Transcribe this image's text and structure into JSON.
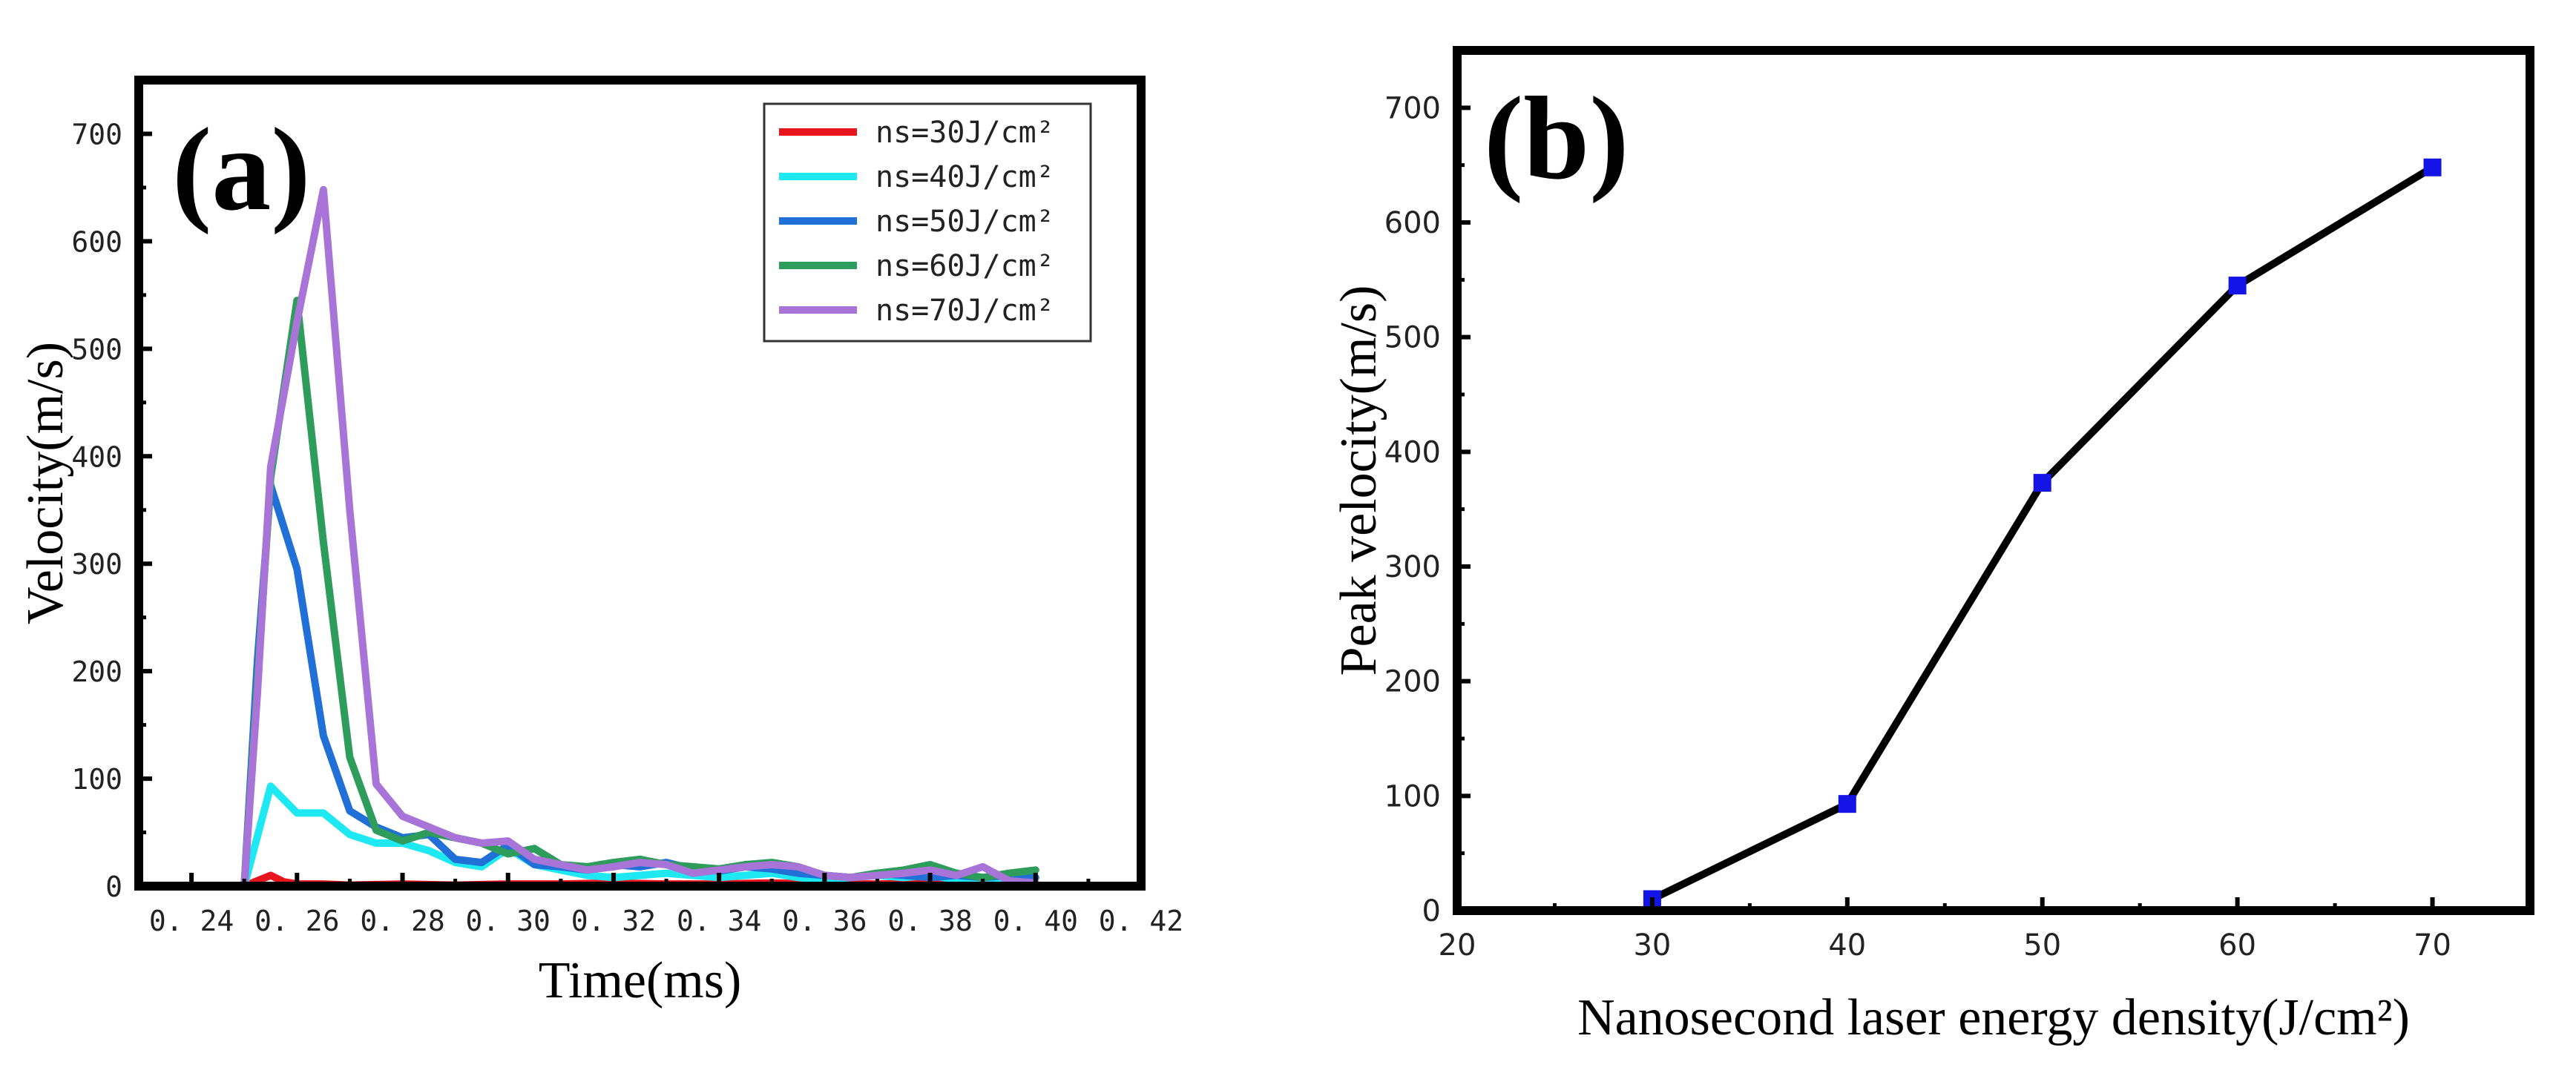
{
  "chart_data": [
    {
      "type": "line",
      "panel_label": "(a)",
      "xlabel": "Time(ms)",
      "ylabel": "Velocity(m/s)",
      "xlim": [
        0.23,
        0.42
      ],
      "ylim": [
        0,
        750
      ],
      "xticks": [
        0.24,
        0.26,
        0.28,
        0.3,
        0.32,
        0.34,
        0.36,
        0.38,
        0.4,
        0.42
      ],
      "xtick_labels": [
        "0. 24",
        "0. 26",
        "0. 28",
        "0. 30",
        "0. 32",
        "0. 34",
        "0. 36",
        "0. 38",
        "0. 40",
        "0. 42"
      ],
      "yticks": [
        0,
        100,
        200,
        300,
        400,
        500,
        600,
        700
      ],
      "legend_position": "top-right",
      "series": [
        {
          "name": "ns=30J/cm²",
          "color": "#e8141e",
          "x": [
            0.25,
            0.2525,
            0.255,
            0.2575,
            0.26,
            0.265,
            0.27,
            0.28,
            0.29,
            0.3,
            0.31,
            0.32,
            0.33,
            0.34,
            0.35,
            0.36,
            0.37,
            0.38,
            0.39,
            0.4
          ],
          "y": [
            0,
            5,
            10,
            4,
            2,
            2,
            1,
            2,
            1,
            2,
            2,
            3,
            2,
            2,
            3,
            2,
            2,
            3,
            2,
            2
          ]
        },
        {
          "name": "ns=40J/cm²",
          "color": "#1ee8f2",
          "x": [
            0.25,
            0.255,
            0.26,
            0.265,
            0.27,
            0.275,
            0.28,
            0.285,
            0.29,
            0.295,
            0.3,
            0.305,
            0.31,
            0.315,
            0.32,
            0.325,
            0.33,
            0.335,
            0.34,
            0.345,
            0.35,
            0.355,
            0.36,
            0.365,
            0.37,
            0.375,
            0.38,
            0.385,
            0.39,
            0.395,
            0.4
          ],
          "y": [
            0,
            93,
            68,
            68,
            48,
            40,
            40,
            33,
            22,
            18,
            35,
            20,
            15,
            10,
            8,
            10,
            12,
            10,
            8,
            10,
            12,
            8,
            6,
            8,
            10,
            8,
            10,
            6,
            8,
            6,
            8
          ]
        },
        {
          "name": "ns=50J/cm²",
          "color": "#2070d8",
          "x": [
            0.25,
            0.2525,
            0.255,
            0.26,
            0.265,
            0.27,
            0.275,
            0.28,
            0.285,
            0.29,
            0.295,
            0.3,
            0.305,
            0.31,
            0.315,
            0.32,
            0.325,
            0.33,
            0.335,
            0.34,
            0.345,
            0.35,
            0.355,
            0.36,
            0.365,
            0.37,
            0.375,
            0.38,
            0.385,
            0.39,
            0.395,
            0.4
          ],
          "y": [
            0,
            210,
            373,
            295,
            140,
            70,
            55,
            45,
            48,
            25,
            22,
            38,
            20,
            18,
            15,
            20,
            18,
            22,
            16,
            14,
            18,
            16,
            12,
            10,
            8,
            12,
            10,
            8,
            10,
            8,
            10,
            8
          ]
        },
        {
          "name": "ns=60J/cm²",
          "color": "#2e9c5a",
          "x": [
            0.25,
            0.255,
            0.26,
            0.265,
            0.27,
            0.275,
            0.28,
            0.285,
            0.29,
            0.295,
            0.3,
            0.305,
            0.31,
            0.315,
            0.32,
            0.325,
            0.33,
            0.335,
            0.34,
            0.345,
            0.35,
            0.355,
            0.36,
            0.365,
            0.37,
            0.375,
            0.38,
            0.385,
            0.39,
            0.395,
            0.4
          ],
          "y": [
            0,
            380,
            545,
            320,
            120,
            52,
            42,
            50,
            45,
            40,
            30,
            35,
            20,
            18,
            22,
            25,
            20,
            18,
            16,
            20,
            22,
            18,
            10,
            8,
            12,
            15,
            20,
            12,
            8,
            12,
            15
          ]
        },
        {
          "name": "ns=70J/cm²",
          "color": "#a874d8",
          "x": [
            0.25,
            0.2525,
            0.255,
            0.26,
            0.265,
            0.27,
            0.275,
            0.28,
            0.285,
            0.29,
            0.295,
            0.3,
            0.305,
            0.31,
            0.315,
            0.32,
            0.325,
            0.33,
            0.335,
            0.34,
            0.345,
            0.35,
            0.355,
            0.36,
            0.365,
            0.37,
            0.375,
            0.38,
            0.385,
            0.39,
            0.395,
            0.4
          ],
          "y": [
            0,
            180,
            390,
            525,
            648,
            350,
            95,
            65,
            55,
            45,
            40,
            42,
            25,
            20,
            15,
            18,
            22,
            20,
            12,
            15,
            18,
            20,
            18,
            10,
            8,
            10,
            12,
            15,
            10,
            18,
            5,
            3
          ]
        }
      ]
    },
    {
      "type": "line",
      "panel_label": "(b)",
      "xlabel": "Nanosecond laser energy density(J/cm²)",
      "ylabel": "Peak velocity(m/s)",
      "xlim": [
        20,
        75
      ],
      "ylim": [
        0,
        750
      ],
      "xticks": [
        20,
        30,
        40,
        50,
        60,
        70
      ],
      "xtick_labels": [
        "20",
        "30",
        "40",
        "50",
        "60",
        "70"
      ],
      "yticks": [
        0,
        100,
        200,
        300,
        400,
        500,
        600,
        700
      ],
      "line_color": "#000000",
      "marker_color": "#1414e6",
      "series": [
        {
          "name": "Peak velocity",
          "x": [
            30,
            40,
            50,
            60,
            70
          ],
          "y": [
            10,
            93,
            373,
            545,
            648
          ]
        }
      ]
    }
  ]
}
